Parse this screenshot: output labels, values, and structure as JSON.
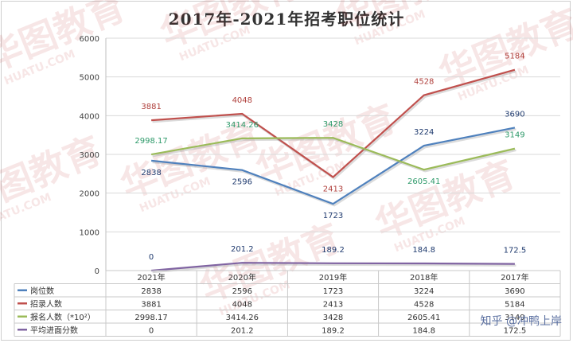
{
  "chart_data": {
    "type": "line",
    "title": "2017年-2021年招考职位统计",
    "categories": [
      "2021年",
      "2020年",
      "2019年",
      "2018年",
      "2017年"
    ],
    "ylim": [
      0,
      6000
    ],
    "yticks": [
      0,
      1000,
      2000,
      3000,
      4000,
      5000,
      6000
    ],
    "grid": true,
    "legend": "table-below",
    "series": [
      {
        "name": "岗位数",
        "color": "#4f81bd",
        "values": [
          2838,
          2596,
          1723,
          3224,
          3690
        ],
        "labels": [
          "2838",
          "2596",
          "1723",
          "3224",
          "3690"
        ],
        "label_color": "#1f3a6e"
      },
      {
        "name": "招录人数",
        "color": "#c0504d",
        "values": [
          3881,
          4048,
          2413,
          4528,
          5184
        ],
        "labels": [
          "3881",
          "4048",
          "2413",
          "4528",
          "5184"
        ],
        "label_color": "#b0403c"
      },
      {
        "name": "报名人数（*10²）",
        "color": "#9bbb59",
        "values": [
          2998.17,
          3414.26,
          3428,
          2605.41,
          3149
        ],
        "labels": [
          "2998.17",
          "3414.26",
          "3428",
          "2605.41",
          "3149"
        ],
        "label_color": "#2e9a6a"
      },
      {
        "name": "平均进面分数",
        "color": "#8064a2",
        "values": [
          0,
          201.2,
          189.2,
          184.8,
          172.5
        ],
        "labels": [
          "0",
          "201.2",
          "189.2",
          "184.8",
          "172.5"
        ],
        "label_color": "#1f3a6e"
      }
    ],
    "table": {
      "rows": [
        [
          "2838",
          "2596",
          "1723",
          "3224",
          "3690"
        ],
        [
          "3881",
          "4048",
          "2413",
          "4528",
          "5184"
        ],
        [
          "2998.17",
          "3414.26",
          "3428",
          "2605.41",
          "3149"
        ],
        [
          "0",
          "201.2",
          "189.2",
          "184.8",
          "172.5"
        ]
      ]
    }
  },
  "watermark": {
    "brand": "华图教育",
    "site": "HUATU.COM"
  },
  "corner_text": "知乎 @冲鸭上岸"
}
